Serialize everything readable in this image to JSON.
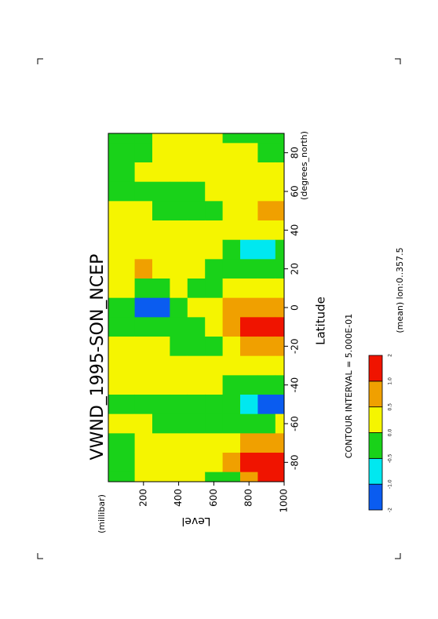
{
  "chart_data": {
    "type": "contour",
    "title": "VWND_1995-SON_NCEP",
    "x_label": "Latitude",
    "x_unit": "(degrees_north)",
    "y_label": "Level",
    "y_unit": "(millibar)",
    "contour_interval": "CONTOUR INTERVAL = 5.000E-01",
    "note": "(mean) lon:0..357.5",
    "x": [
      -90,
      -80,
      -70,
      -60,
      -50,
      -40,
      -30,
      -20,
      -10,
      0,
      10,
      20,
      30,
      40,
      50,
      60,
      70,
      80,
      90
    ],
    "levels": [
      100,
      200,
      300,
      400,
      500,
      600,
      700,
      800,
      900,
      1000
    ],
    "values": [
      [
        -0.2,
        -0.2,
        -0.2,
        0.2,
        -0.2,
        0.2,
        0.2,
        0.2,
        -0.2,
        -0.2,
        0.2,
        0.2,
        0.2,
        0.2,
        0.2,
        -0.2,
        -0.2,
        -0.2,
        -0.2
      ],
      [
        0.2,
        0.2,
        0.2,
        0.2,
        -0.2,
        0.2,
        0.2,
        0.2,
        -0.2,
        -1.3,
        -0.2,
        0.7,
        0.2,
        0.2,
        0.2,
        -0.2,
        0.2,
        -0.2,
        -0.2
      ],
      [
        0.2,
        0.2,
        0.2,
        -0.2,
        -0.2,
        0.2,
        0.2,
        0.2,
        -0.2,
        -1.3,
        -0.2,
        0.2,
        0.2,
        0.2,
        -0.2,
        -0.2,
        0.2,
        0.2,
        0.2
      ],
      [
        0.2,
        0.2,
        0.2,
        -0.2,
        -0.2,
        0.2,
        0.2,
        -0.2,
        -0.2,
        -0.2,
        0.2,
        0.2,
        0.2,
        0.2,
        -0.2,
        -0.2,
        0.2,
        0.2,
        0.2
      ],
      [
        0.2,
        0.2,
        0.2,
        -0.2,
        -0.2,
        0.2,
        0.2,
        -0.2,
        -0.2,
        0.2,
        -0.2,
        0.2,
        0.2,
        0.2,
        -0.2,
        -0.2,
        0.2,
        0.2,
        0.2
      ],
      [
        -0.2,
        0.2,
        0.2,
        -0.2,
        -0.2,
        0.2,
        0.2,
        -0.2,
        0.2,
        0.2,
        -0.2,
        -0.2,
        0.2,
        0.2,
        -0.2,
        0.2,
        0.2,
        0.2,
        0.2
      ],
      [
        -0.2,
        0.7,
        0.2,
        -0.2,
        -0.2,
        -0.2,
        0.2,
        0.2,
        0.7,
        0.7,
        0.2,
        -0.2,
        -0.2,
        0.2,
        0.2,
        0.2,
        0.2,
        0.2,
        -0.2
      ],
      [
        0.7,
        1.3,
        0.7,
        -0.2,
        -0.7,
        -0.2,
        0.2,
        0.7,
        1.3,
        0.7,
        0.2,
        -0.2,
        -0.7,
        0.2,
        0.2,
        0.2,
        0.2,
        0.2,
        -0.2
      ],
      [
        1.3,
        1.3,
        0.7,
        -0.2,
        -1.3,
        -0.2,
        0.2,
        0.7,
        1.3,
        0.7,
        0.2,
        -0.2,
        -0.7,
        0.2,
        0.7,
        0.2,
        0.2,
        -0.2,
        -0.2
      ],
      [
        1.3,
        1.3,
        0.7,
        0.2,
        -1.3,
        -0.2,
        0.2,
        0.7,
        1.3,
        0.7,
        0.2,
        -0.2,
        -0.2,
        0.2,
        0.7,
        0.2,
        0.2,
        -0.2,
        -0.2
      ]
    ],
    "thresholds": [
      -1,
      -0.5,
      0,
      0.5,
      1
    ],
    "colors": [
      "#0a5cf0",
      "#00e8f0",
      "#19d219",
      "#f5f500",
      "#f0a000",
      "#f01400"
    ],
    "xlim": [
      -90,
      90
    ],
    "xticks": [
      -80,
      -60,
      -40,
      -20,
      0,
      20,
      40,
      60,
      80
    ],
    "ylim": [
      0,
      1000
    ],
    "yticks": [
      200,
      400,
      600,
      800,
      1000
    ],
    "colorbar_ticks": [
      -2,
      {
        "value": -1,
        "label": "-1.0"
      },
      -0.5,
      {
        "value": 0,
        "label": "0.0"
      },
      0.5,
      {
        "value": 1,
        "label": "1.0"
      },
      2
    ]
  }
}
